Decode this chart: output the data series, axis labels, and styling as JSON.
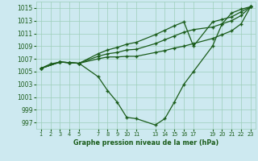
{
  "xlabel_bottom": "Graphe pression niveau de la mer (hPa)",
  "bg_color": "#cde9f0",
  "grid_color": "#9dcfba",
  "line_color": "#1a5c1a",
  "marker": "+",
  "x_ticks": [
    1,
    2,
    3,
    4,
    5,
    7,
    8,
    9,
    10,
    11,
    13,
    14,
    15,
    16,
    17,
    19,
    20,
    21,
    22,
    23
  ],
  "ylim": [
    996.0,
    1016.0
  ],
  "yticks": [
    997,
    999,
    1001,
    1003,
    1005,
    1007,
    1009,
    1011,
    1013,
    1015
  ],
  "line1_x": [
    1,
    2,
    3,
    4,
    5,
    7,
    8,
    9,
    10,
    11,
    13,
    14,
    15,
    16,
    17,
    19,
    20,
    21,
    22,
    23
  ],
  "line1_y": [
    1005.5,
    1006.2,
    1006.5,
    1006.4,
    1006.3,
    1004.2,
    1002.0,
    1000.2,
    997.8,
    997.6,
    996.6,
    997.6,
    1000.2,
    1003.0,
    1005.0,
    1009.0,
    1012.5,
    1014.2,
    1014.8,
    1015.2
  ],
  "line2_x": [
    1,
    3,
    4,
    5,
    7,
    8,
    9,
    10,
    11,
    13,
    14,
    15,
    16,
    17,
    19,
    20,
    21,
    22,
    23
  ],
  "line2_y": [
    1005.5,
    1006.5,
    1006.4,
    1006.3,
    1007.0,
    1007.3,
    1007.3,
    1007.4,
    1007.4,
    1008.0,
    1008.3,
    1008.7,
    1009.0,
    1009.4,
    1010.2,
    1010.8,
    1011.4,
    1012.5,
    1015.2
  ],
  "line3_x": [
    1,
    3,
    4,
    5,
    7,
    8,
    9,
    10,
    11,
    13,
    14,
    15,
    16,
    17,
    19,
    20,
    21,
    22,
    23
  ],
  "line3_y": [
    1005.5,
    1006.5,
    1006.4,
    1006.3,
    1007.4,
    1007.8,
    1008.0,
    1008.4,
    1008.5,
    1009.4,
    1010.0,
    1010.6,
    1011.2,
    1011.6,
    1012.0,
    1012.5,
    1013.0,
    1013.8,
    1015.2
  ],
  "line4_x": [
    1,
    3,
    4,
    5,
    7,
    8,
    9,
    10,
    11,
    13,
    14,
    15,
    16,
    17,
    19,
    20,
    21,
    22,
    23
  ],
  "line4_y": [
    1005.5,
    1006.5,
    1006.4,
    1006.3,
    1007.8,
    1008.4,
    1008.8,
    1009.3,
    1009.6,
    1010.8,
    1011.5,
    1012.2,
    1012.8,
    1009.0,
    1012.8,
    1013.2,
    1013.6,
    1014.4,
    1015.2
  ]
}
